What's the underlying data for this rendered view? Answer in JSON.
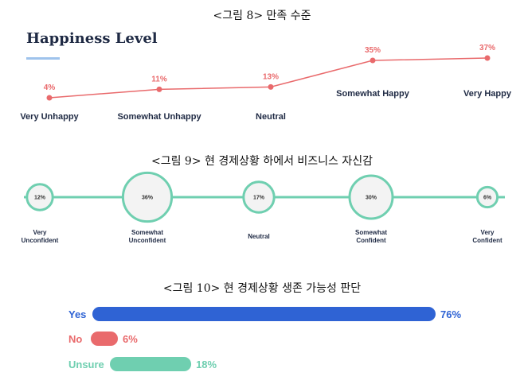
{
  "captions": {
    "fig8": "<그림 8> 만족 수준",
    "fig9": "<그림 9> 현 경제상황 하에서 비즈니스 자신감",
    "fig10": "<그림 10> 현 경제상황 생존 가능성 판단"
  },
  "chart_data": [
    {
      "type": "line",
      "title": "Happiness Level",
      "categories": [
        "Very Unhappy",
        "Somewhat Unhappy",
        "Neutral",
        "Somewhat Happy",
        "Very Happy"
      ],
      "values": [
        4,
        11,
        13,
        35,
        37
      ],
      "value_labels": [
        "4%",
        "11%",
        "13%",
        "35%",
        "37%"
      ],
      "color": "#e96a6c"
    },
    {
      "type": "bubble",
      "categories": [
        [
          "Very",
          "Unconfident"
        ],
        [
          "Somewhat",
          "Unconfident"
        ],
        [
          "Neutral"
        ],
        [
          "Somewhat",
          "Confident"
        ],
        [
          "Very",
          "Confident"
        ]
      ],
      "values": [
        12,
        36,
        17,
        30,
        6
      ],
      "value_labels": [
        "12%",
        "36%",
        "17%",
        "30%",
        "6%"
      ],
      "color": "#6fcfb0"
    },
    {
      "type": "bar",
      "orientation": "horizontal",
      "categories": [
        "Yes",
        "No",
        "Unsure"
      ],
      "values": [
        76,
        6,
        18
      ],
      "value_labels": [
        "76%",
        "6%",
        "18%"
      ],
      "colors": [
        "#2f63d4",
        "#e96a6c",
        "#6fcfb0"
      ]
    }
  ]
}
